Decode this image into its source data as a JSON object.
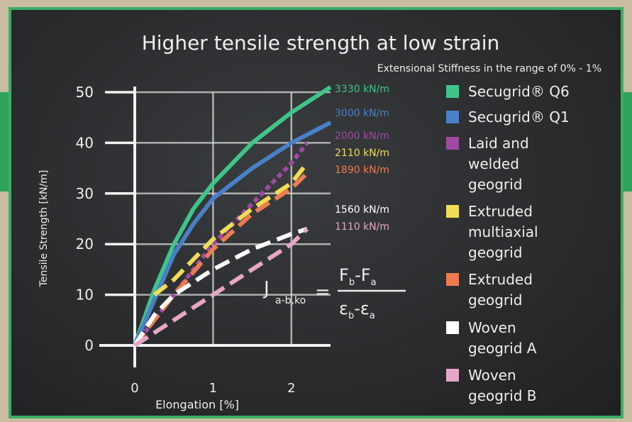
{
  "chart_data": {
    "type": "line",
    "title": "Higher tensile strength at low strain",
    "subtitle": "Extensional Stiffness in the range of 0% - 1%",
    "xlabel": "Elongation [%]",
    "ylabel": "Tensile Strength [kN/m]",
    "xlim": [
      0,
      2.5
    ],
    "ylim": [
      0,
      50
    ],
    "x_ticks": [
      "0",
      "1",
      "2"
    ],
    "y_ticks": [
      "0",
      "10",
      "20",
      "30",
      "40",
      "50"
    ],
    "grid": true,
    "legend_position": "right",
    "formula": "J a-b,ko = (F b - F a) / (ε b - ε a)",
    "series": [
      {
        "name": "Secugrid® Q6",
        "color": "#3fc48a",
        "style": "solid",
        "stiffness_label": "3330 kN/m",
        "x": [
          0,
          0.25,
          0.5,
          0.75,
          1.0,
          1.5,
          2.0,
          2.5
        ],
        "y": [
          0,
          11,
          20,
          27,
          32,
          40,
          46,
          51
        ]
      },
      {
        "name": "Secugrid® Q1",
        "color": "#4a7fc8",
        "style": "solid",
        "stiffness_label": "3000 kN/m",
        "x": [
          0,
          0.25,
          0.5,
          0.75,
          1.0,
          1.5,
          2.0,
          2.5
        ],
        "y": [
          0,
          9,
          18,
          24,
          29,
          35,
          40,
          44
        ]
      },
      {
        "name": "Laid and welded geogrid",
        "color": "#a04aa3",
        "style": "dotted",
        "stiffness_label": "2000 kN/m",
        "x": [
          0,
          0.5,
          1.0,
          1.5,
          2.0,
          2.2
        ],
        "y": [
          0,
          10,
          20,
          28,
          36,
          40
        ]
      },
      {
        "name": "Extruded multiaxial geogrid",
        "color": "#f0dc55",
        "style": "dashed",
        "stiffness_label": "2110 kN/m",
        "x": [
          0.25,
          0.5,
          1.0,
          1.5,
          2.0,
          2.2
        ],
        "y": [
          10,
          13,
          21,
          27,
          32,
          36
        ]
      },
      {
        "name": "Extruded geogrid",
        "color": "#ee7b52",
        "style": "dashed",
        "stiffness_label": "1890 kN/m",
        "x": [
          0,
          0.5,
          1.0,
          1.5,
          2.0,
          2.2
        ],
        "y": [
          0,
          10,
          19,
          26,
          31,
          34
        ]
      },
      {
        "name": "Woven geogrid A",
        "color": "#ffffff",
        "style": "dashed",
        "stiffness_label": "1560 kN/m",
        "x": [
          0,
          0.25,
          0.5,
          1.0,
          1.5,
          2.0,
          2.2
        ],
        "y": [
          0,
          6,
          10,
          15,
          19,
          22,
          23
        ]
      },
      {
        "name": "Woven geogrid B",
        "color": "#e7a6c7",
        "style": "dashed",
        "stiffness_label": "1110 kN/m",
        "x": [
          0,
          0.5,
          1.0,
          1.5,
          2.0,
          2.2
        ],
        "y": [
          0,
          5,
          10,
          15,
          20,
          23
        ]
      }
    ]
  }
}
